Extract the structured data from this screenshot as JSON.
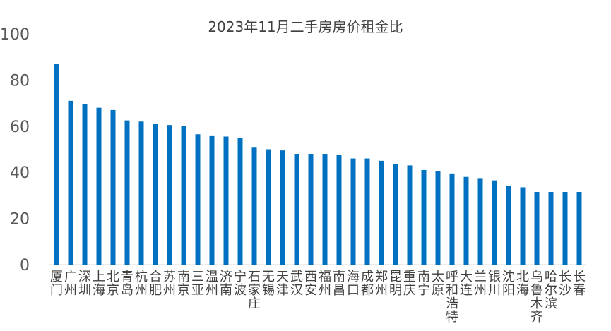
{
  "chart_data": {
    "type": "bar",
    "title": "2023年11月二手房房价租金比",
    "xlabel": "",
    "ylabel": "",
    "ylim": [
      0,
      100
    ],
    "yticks": [
      0,
      20,
      40,
      60,
      80,
      100
    ],
    "grid": false,
    "legend": "none",
    "bar_color": "#0070C0",
    "categories": [
      "厦门",
      "广州",
      "深圳",
      "上海",
      "北京",
      "青岛",
      "杭州",
      "合肥",
      "苏州",
      "南京",
      "三亚",
      "温州",
      "济南",
      "宁波",
      "石家庄",
      "无锡",
      "天津",
      "武汉",
      "西安",
      "福州",
      "南昌",
      "海口",
      "成都",
      "郑州",
      "昆明",
      "重庆",
      "南宁",
      "太原",
      "呼和浩特",
      "大连",
      "兰州",
      "银川",
      "沈阳",
      "北海",
      "乌鲁木齐",
      "哈尔滨",
      "长沙",
      "长春"
    ],
    "values": [
      87,
      71,
      69.5,
      68,
      67,
      62.5,
      62,
      61,
      60.5,
      60,
      56.5,
      56,
      55.5,
      55,
      51,
      50,
      49.5,
      48,
      48,
      48,
      47.5,
      46,
      46,
      45,
      43.5,
      43,
      41,
      40.5,
      39.5,
      38,
      37.5,
      36.5,
      34,
      33.5,
      31.5,
      31.5,
      31.5,
      31.5
    ]
  }
}
